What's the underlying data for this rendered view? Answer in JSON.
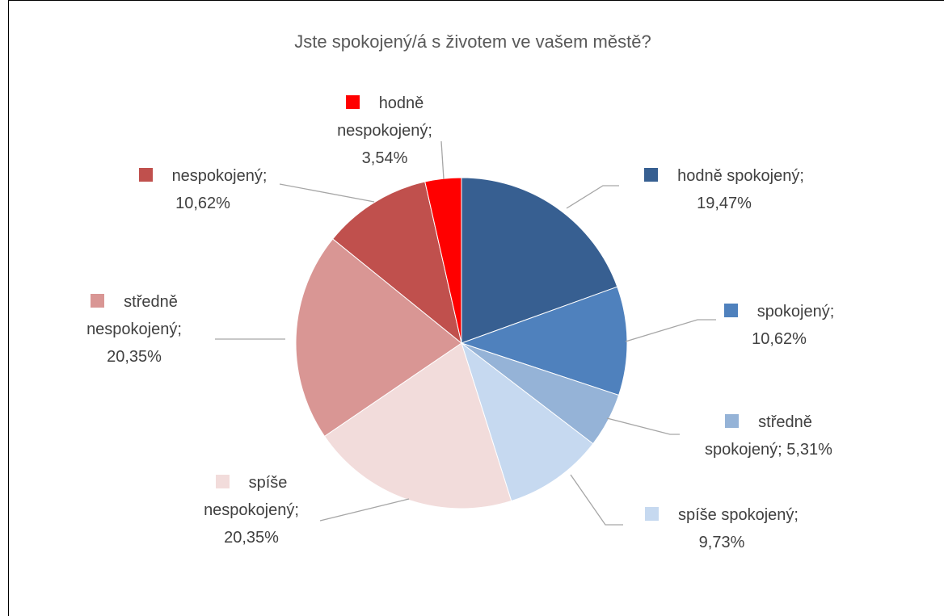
{
  "chart_data": {
    "type": "pie",
    "title": "Jste spokojený/á s životem ve vašem městě?",
    "label_separator": ";",
    "categories": [
      "hodně spokojený",
      "spokojený",
      "středně spokojený",
      "spíše spokojený",
      "spíše nespokojený",
      "středně nespokojený",
      "nespokojený",
      "hodně nespokojený"
    ],
    "values": [
      19.47,
      10.62,
      5.31,
      9.73,
      20.35,
      20.35,
      10.62,
      3.54
    ],
    "value_labels": [
      "19,47%",
      "10,62%",
      "5,31%",
      "9,73%",
      "20,35%",
      "20,35%",
      "10,62%",
      "3,54%"
    ],
    "colors": [
      "#375f91",
      "#4f81bd",
      "#95b3d7",
      "#c6d9f0",
      "#f2dcdb",
      "#d99694",
      "#c0504d",
      "#ff0000"
    ]
  }
}
